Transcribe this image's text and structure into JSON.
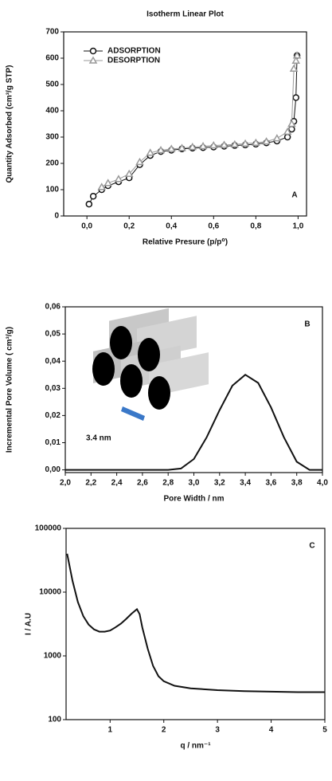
{
  "chart_data": [
    {
      "type": "line",
      "title": "Isotherm Linear Plot",
      "panel_label": "A",
      "x_label": "Relative Presure (p/p⁰)",
      "y_label": "Quantity Adsorbed (cm³/g STP)",
      "xlim": [
        -0.11,
        1.04
      ],
      "ylim": [
        0,
        700
      ],
      "xticks": [
        {
          "value": 0,
          "label": "0,0"
        },
        {
          "value": 0.2,
          "label": "0,2"
        },
        {
          "value": 0.4,
          "label": "0,4"
        },
        {
          "value": 0.6,
          "label": "0,6"
        },
        {
          "value": 0.8,
          "label": "0,8"
        },
        {
          "value": 1.0,
          "label": "1,0"
        }
      ],
      "yticks": [
        0,
        100,
        200,
        300,
        400,
        500,
        600,
        700
      ],
      "legend": "upper left",
      "series": [
        {
          "name": "ADSORPTION",
          "color": "#111111",
          "marker": "circle",
          "x": [
            0.01,
            0.03,
            0.07,
            0.1,
            0.15,
            0.2,
            0.25,
            0.3,
            0.35,
            0.4,
            0.45,
            0.5,
            0.55,
            0.6,
            0.65,
            0.7,
            0.75,
            0.8,
            0.85,
            0.9,
            0.95,
            0.97,
            0.98,
            0.99,
            0.995
          ],
          "values": [
            45,
            75,
            100,
            115,
            130,
            145,
            195,
            230,
            245,
            250,
            255,
            258,
            260,
            262,
            265,
            268,
            270,
            273,
            278,
            285,
            300,
            330,
            360,
            450,
            610
          ]
        },
        {
          "name": "DESORPTION",
          "color": "#999999",
          "marker": "triangle",
          "x": [
            0.995,
            0.99,
            0.98,
            0.97,
            0.95,
            0.9,
            0.85,
            0.8,
            0.75,
            0.7,
            0.65,
            0.6,
            0.55,
            0.5,
            0.45,
            0.4,
            0.35,
            0.3,
            0.25,
            0.2,
            0.15,
            0.1,
            0.07
          ],
          "values": [
            610,
            590,
            560,
            350,
            320,
            295,
            283,
            278,
            275,
            272,
            270,
            268,
            265,
            262,
            258,
            255,
            250,
            240,
            205,
            160,
            140,
            125,
            110
          ]
        }
      ]
    },
    {
      "type": "line",
      "panel_label": "B",
      "annotation": "3.4 nm",
      "x_label": "Pore Width / nm",
      "y_label": "Incremental Pore Volume ( cm³/g)",
      "xlim": [
        2.0,
        4.0
      ],
      "ylim": [
        -0.001,
        0.06
      ],
      "xticks": [
        {
          "value": 2.0,
          "label": "2,0"
        },
        {
          "value": 2.2,
          "label": "2,2"
        },
        {
          "value": 2.4,
          "label": "2,4"
        },
        {
          "value": 2.6,
          "label": "2,6"
        },
        {
          "value": 2.8,
          "label": "2,8"
        },
        {
          "value": 3.0,
          "label": "3,0"
        },
        {
          "value": 3.2,
          "label": "3,2"
        },
        {
          "value": 3.4,
          "label": "3,4"
        },
        {
          "value": 3.6,
          "label": "3,6"
        },
        {
          "value": 3.8,
          "label": "3,8"
        },
        {
          "value": 4.0,
          "label": "4,0"
        }
      ],
      "yticks": [
        {
          "value": 0,
          "label": "0,00"
        },
        {
          "value": 0.01,
          "label": "0,01"
        },
        {
          "value": 0.02,
          "label": "0,02"
        },
        {
          "value": 0.03,
          "label": "0,03"
        },
        {
          "value": 0.04,
          "label": "0,04"
        },
        {
          "value": 0.05,
          "label": "0,05"
        },
        {
          "value": 0.06,
          "label": "0,06"
        }
      ],
      "x": [
        2.0,
        2.1,
        2.2,
        2.3,
        2.4,
        2.5,
        2.6,
        2.7,
        2.8,
        2.9,
        3.0,
        3.1,
        3.2,
        3.3,
        3.4,
        3.5,
        3.6,
        3.7,
        3.8,
        3.9,
        4.0
      ],
      "series": [
        {
          "color": "#111111",
          "values": [
            0,
            0,
            0,
            0,
            0,
            0,
            0,
            0,
            0,
            0.0005,
            0.004,
            0.012,
            0.022,
            0.031,
            0.035,
            0.032,
            0.023,
            0.012,
            0.003,
            0,
            0
          ]
        }
      ]
    },
    {
      "type": "line",
      "panel_label": "C",
      "log_y": true,
      "x_label": "q / nm⁻¹",
      "y_label": "I / A.U",
      "xlim": [
        0.18,
        5
      ],
      "ylim": [
        100,
        100000
      ],
      "xticks": [
        1,
        2,
        3,
        4,
        5
      ],
      "yticks": [
        100,
        1000,
        10000,
        100000
      ],
      "x": [
        0.2,
        0.3,
        0.4,
        0.5,
        0.6,
        0.7,
        0.8,
        0.9,
        1.0,
        1.1,
        1.2,
        1.3,
        1.4,
        1.5,
        1.55,
        1.6,
        1.7,
        1.8,
        1.9,
        2.0,
        2.2,
        2.5,
        3.0,
        3.5,
        4.0,
        4.5,
        5.0
      ],
      "series": [
        {
          "color": "#111111",
          "values": [
            40000,
            15000,
            7000,
            4200,
            3100,
            2600,
            2400,
            2400,
            2500,
            2800,
            3200,
            3800,
            4600,
            5400,
            4500,
            2800,
            1300,
            700,
            480,
            400,
            340,
            310,
            290,
            280,
            275,
            270,
            270
          ]
        }
      ]
    }
  ]
}
